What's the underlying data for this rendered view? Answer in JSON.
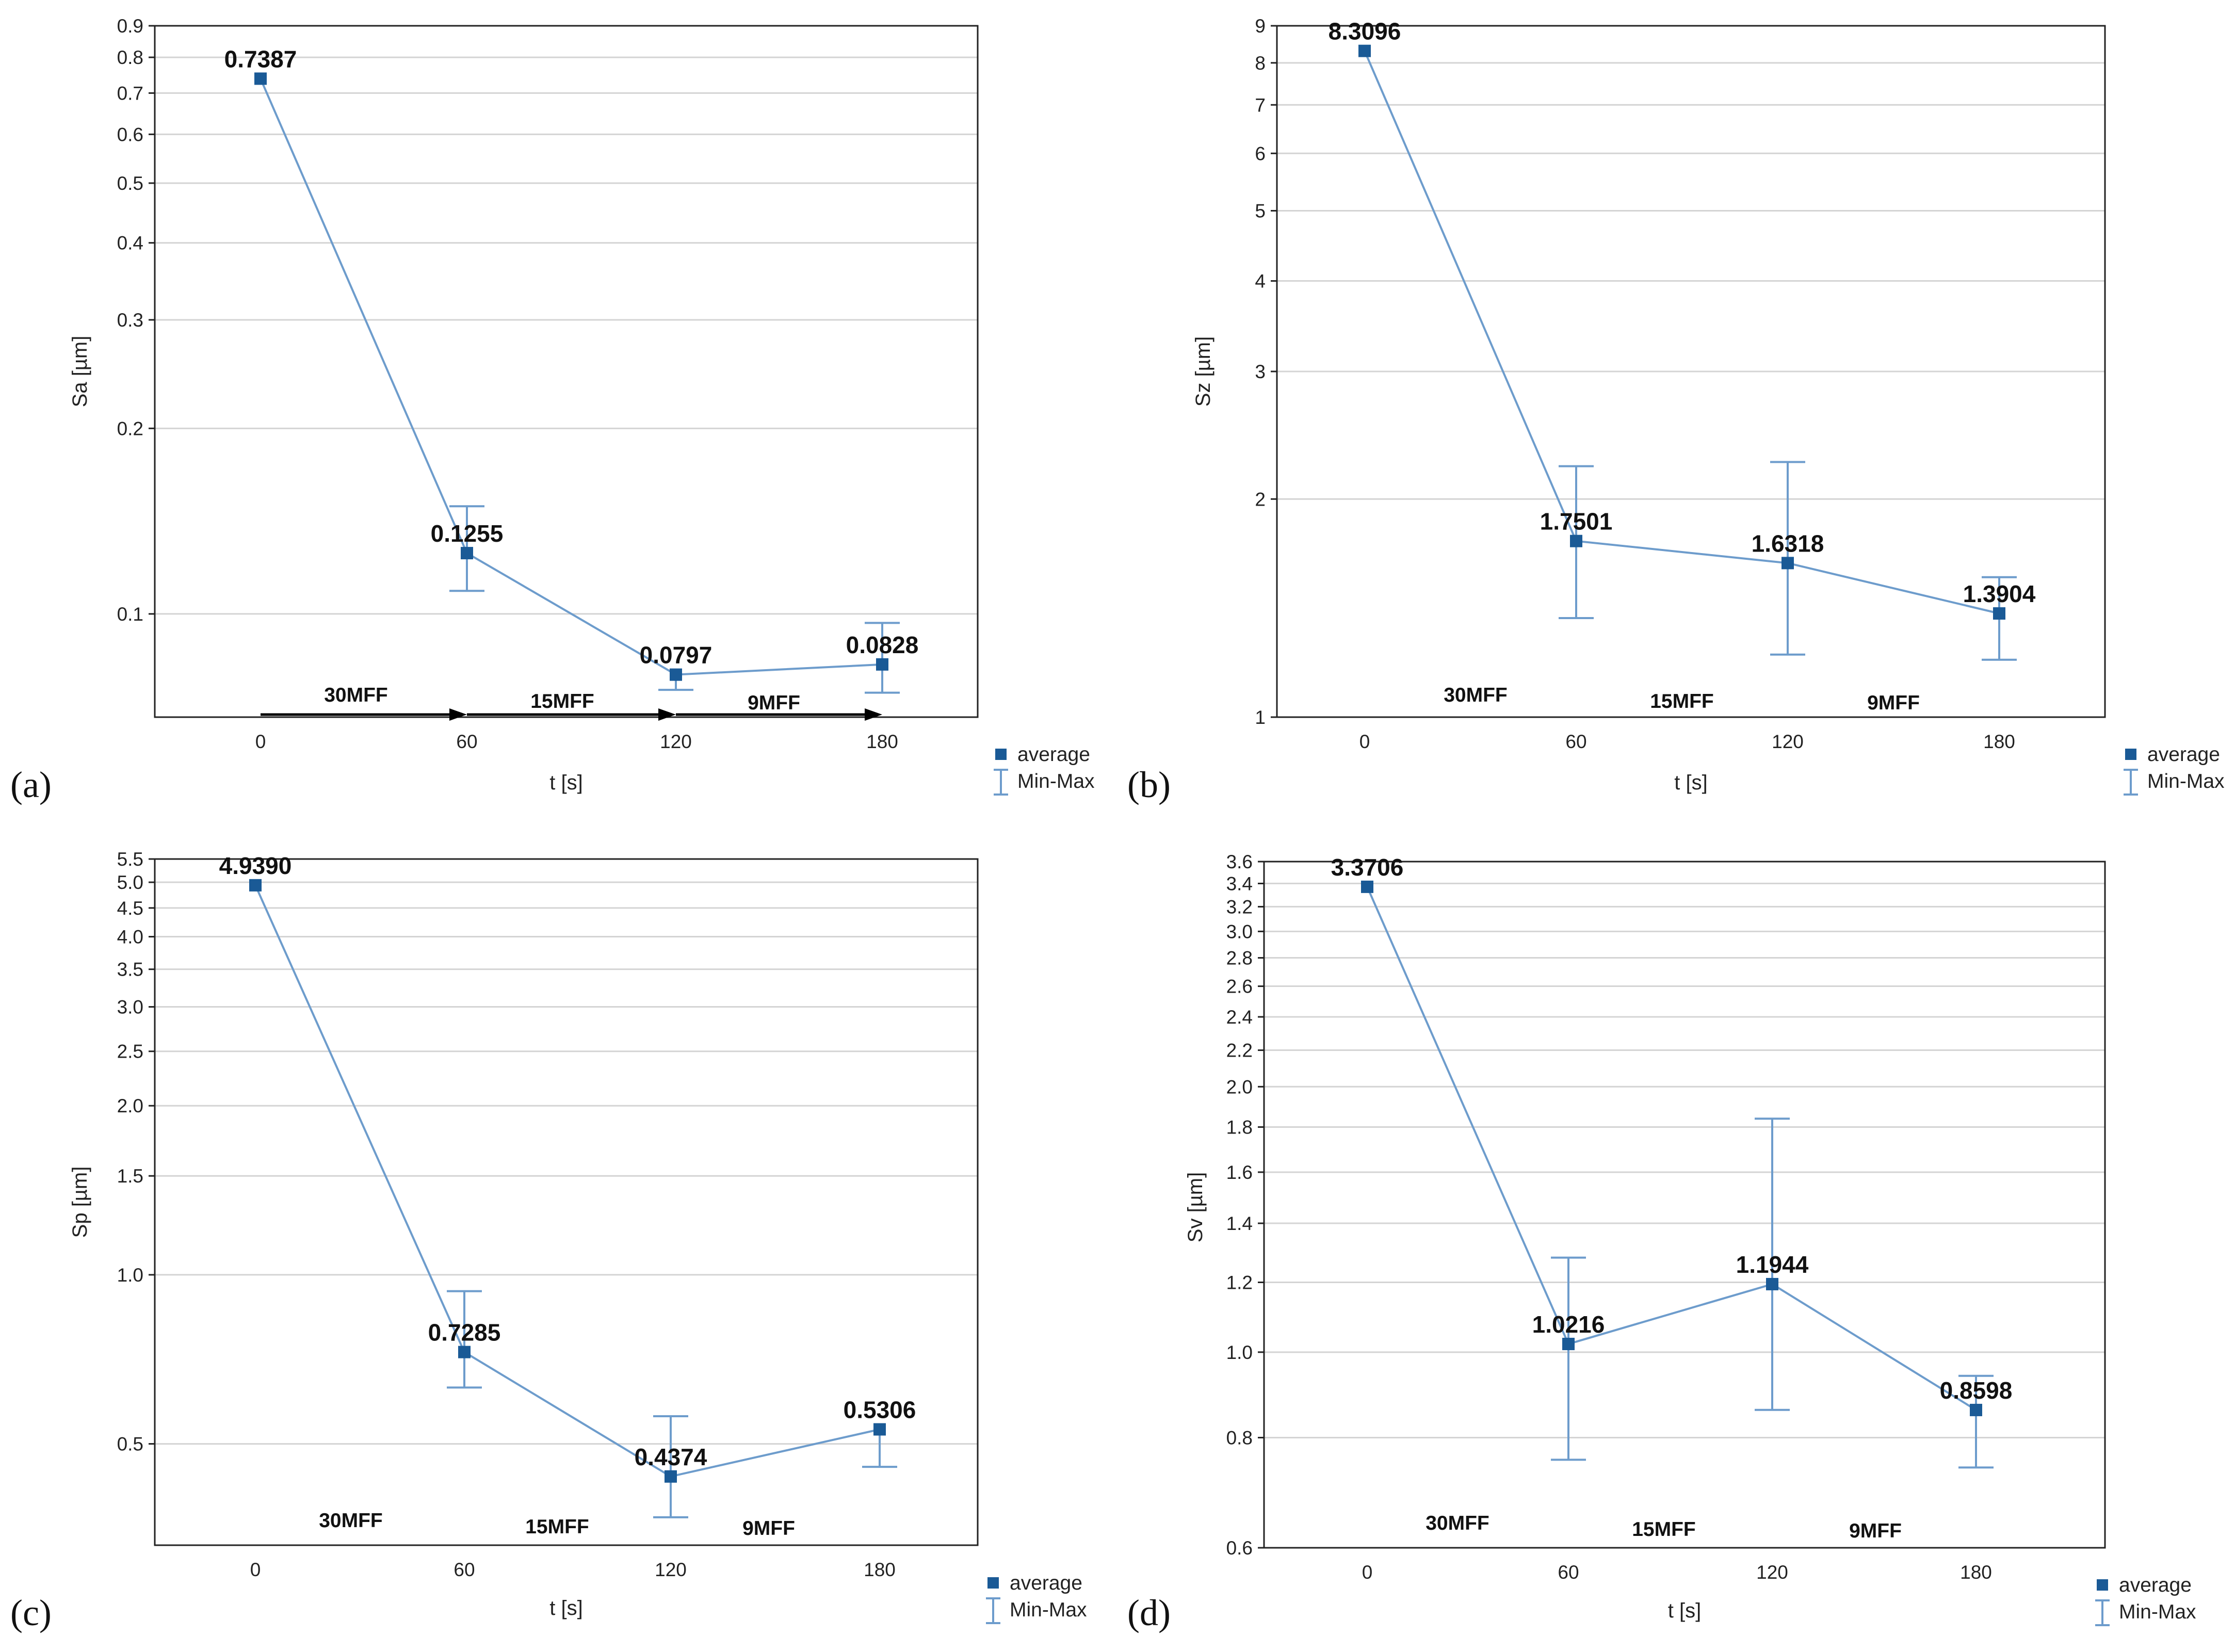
{
  "chart_data": [
    {
      "panel": "(a)",
      "type": "line",
      "title": "",
      "xlabel": "t [s]",
      "ylabel": "Sa [µm]",
      "yscale": "log",
      "ylim": [
        0.068,
        0.9
      ],
      "x": [
        0,
        60,
        120,
        180
      ],
      "x_ticks": [
        "0",
        "60",
        "120",
        "180"
      ],
      "y_ticks": [
        0.1,
        0.2,
        0.3,
        0.4,
        0.5,
        0.6,
        0.7,
        0.8,
        0.9
      ],
      "series": [
        {
          "name": "average",
          "values": [
            0.7387,
            0.1255,
            0.0797,
            0.0828
          ]
        }
      ],
      "error_bars": {
        "name": "Min-Max",
        "min": [
          null,
          0.109,
          0.0753,
          0.0745
        ],
        "max": [
          null,
          0.1495,
          null,
          0.0967
        ]
      },
      "data_labels": [
        "0.7387",
        "0.1255",
        "0.0797",
        "0.0828"
      ],
      "annotations": [
        "30MFF",
        "15MFF",
        "9MFF"
      ],
      "arrows": true,
      "legend": [
        "average",
        "Min-Max"
      ]
    },
    {
      "panel": "(b)",
      "type": "line",
      "title": "",
      "xlabel": "t [s]",
      "ylabel": "Sz [µm]",
      "yscale": "log",
      "ylim": [
        1,
        9
      ],
      "x": [
        0,
        60,
        120,
        180
      ],
      "x_ticks": [
        "0",
        "60",
        "120",
        "180"
      ],
      "y_ticks": [
        1,
        2,
        3,
        4,
        5,
        6,
        7,
        8,
        9
      ],
      "series": [
        {
          "name": "average",
          "values": [
            8.3096,
            1.7501,
            1.6318,
            1.3904
          ]
        }
      ],
      "error_bars": {
        "name": "Min-Max",
        "min": [
          null,
          1.37,
          1.22,
          1.2
        ],
        "max": [
          null,
          2.22,
          2.25,
          1.56
        ]
      },
      "data_labels": [
        "8.3096",
        "1.7501",
        "1.6318",
        "1.3904"
      ],
      "annotations": [
        "30MFF",
        "15MFF",
        "9MFF"
      ],
      "arrows": false,
      "legend": [
        "average",
        "Min-Max"
      ]
    },
    {
      "panel": "(c)",
      "type": "line",
      "title": "",
      "xlabel": "t [s]",
      "ylabel": "Sp [µm]",
      "yscale": "log",
      "ylim": [
        0.33,
        5.5
      ],
      "x": [
        0,
        60,
        120,
        180
      ],
      "x_ticks": [
        "0",
        "60",
        "120",
        "180"
      ],
      "y_ticks": [
        0.5,
        1.0,
        1.5,
        2.0,
        2.5,
        3.0,
        3.5,
        4.0,
        4.5,
        5.0,
        5.5
      ],
      "y_tick_labels": [
        "0.5",
        "1.0",
        "1.5",
        "2.0",
        "2.5",
        "3.0",
        "3.5",
        "4.0",
        "4.5",
        "5.0",
        "5.5"
      ],
      "series": [
        {
          "name": "average",
          "values": [
            4.939,
            0.7285,
            0.4374,
            0.5306
          ]
        }
      ],
      "error_bars": {
        "name": "Min-Max",
        "min": [
          null,
          0.63,
          0.37,
          0.455
        ],
        "max": [
          null,
          0.935,
          0.56,
          null
        ]
      },
      "data_labels": [
        "4.9390",
        "0.7285",
        "0.4374",
        "0.5306"
      ],
      "annotations": [
        "30MFF",
        "15MFF",
        "9MFF"
      ],
      "arrows": false,
      "legend": [
        "average",
        "Min-Max"
      ]
    },
    {
      "panel": "(d)",
      "type": "line",
      "title": "",
      "xlabel": "t [s]",
      "ylabel": "Sv [µm]",
      "yscale": "log",
      "ylim": [
        0.6,
        3.6
      ],
      "x": [
        0,
        60,
        120,
        180
      ],
      "x_ticks": [
        "0",
        "60",
        "120",
        "180"
      ],
      "y_ticks": [
        0.6,
        0.8,
        1.0,
        1.2,
        1.4,
        1.6,
        1.8,
        2.0,
        2.2,
        2.4,
        2.6,
        2.8,
        3.0,
        3.2,
        3.4,
        3.6
      ],
      "y_tick_labels": [
        "0.6",
        "0.8",
        "1.0",
        "1.2",
        "1.4",
        "1.6",
        "1.8",
        "2.0",
        "2.2",
        "2.4",
        "2.6",
        "2.8",
        "3.0",
        "3.2",
        "3.4",
        "3.6"
      ],
      "series": [
        {
          "name": "average",
          "values": [
            3.3706,
            1.0216,
            1.1944,
            0.8598
          ]
        }
      ],
      "error_bars": {
        "name": "Min-Max",
        "min": [
          null,
          0.755,
          0.86,
          0.74
        ],
        "max": [
          null,
          1.28,
          1.84,
          0.94
        ]
      },
      "data_labels": [
        "3.3706",
        "1.0216",
        "1.1944",
        "0.8598"
      ],
      "annotations": [
        "30MFF",
        "15MFF",
        "9MFF"
      ],
      "arrows": false,
      "legend": [
        "average",
        "Min-Max"
      ]
    }
  ],
  "colors": {
    "series": "#6d9ccc",
    "marker": "#1a5a96",
    "grid": "#d4d4d4",
    "axis": "#222222"
  }
}
